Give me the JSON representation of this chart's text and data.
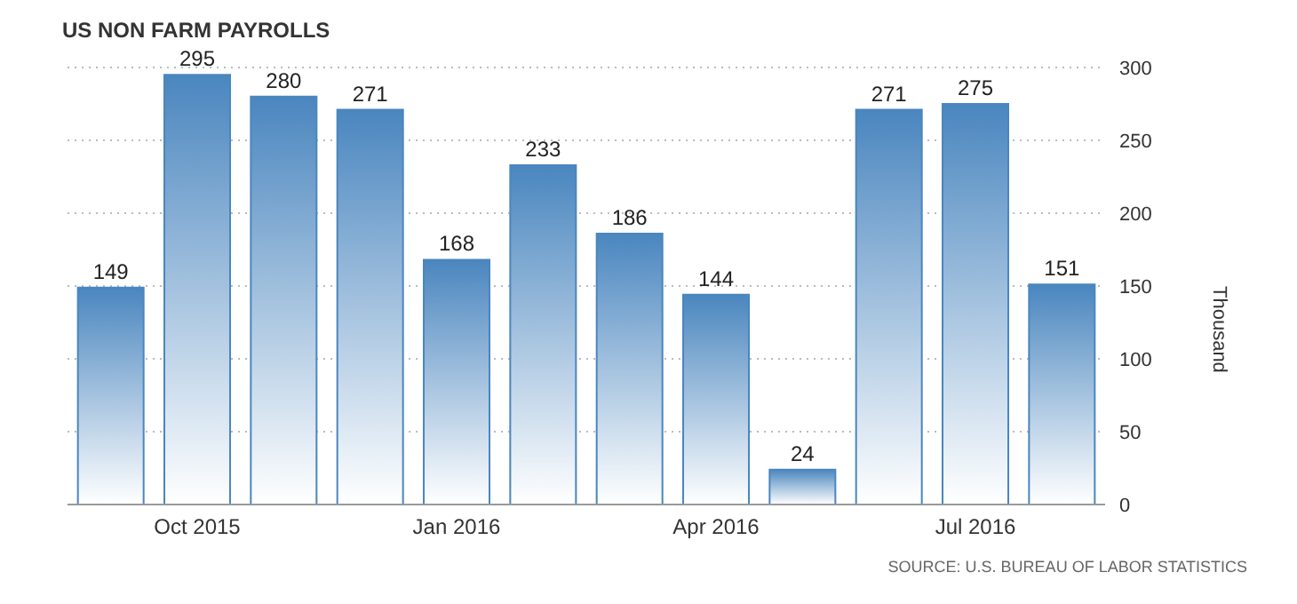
{
  "chart_data": {
    "type": "bar",
    "title": "US NON FARM PAYROLLS",
    "ylabel": "Thousand",
    "categories": [
      null,
      "Oct 2015",
      null,
      null,
      "Jan 2016",
      null,
      null,
      "Apr 2016",
      null,
      null,
      "Jul 2016",
      null
    ],
    "values": [
      149,
      295,
      280,
      271,
      168,
      233,
      186,
      144,
      24,
      271,
      275,
      151
    ],
    "color": "#4a86bf",
    "ylim": [
      0,
      300
    ],
    "yticks": [
      0,
      50,
      100,
      150,
      200,
      250,
      300
    ],
    "grid": "y",
    "data_labels": true,
    "annotations": [
      "SOURCE: U.S. BUREAU OF LABOR STATISTICS"
    ]
  }
}
